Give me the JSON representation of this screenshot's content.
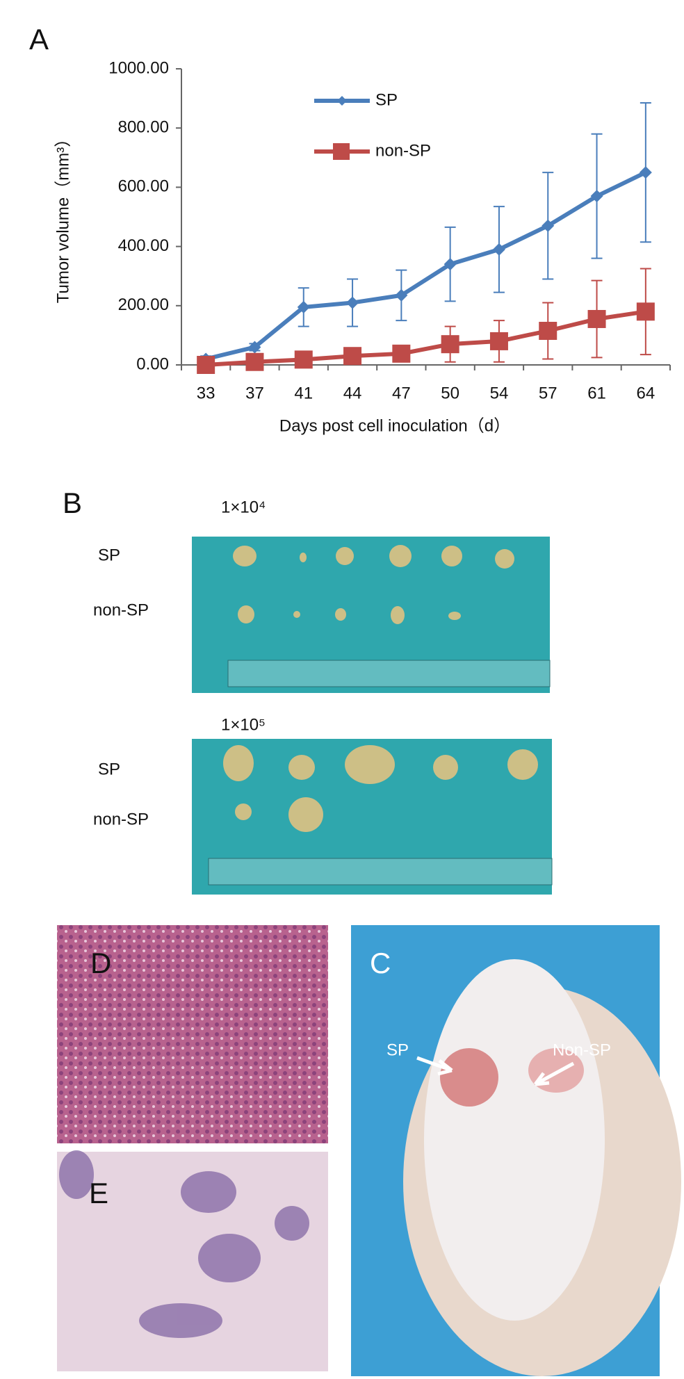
{
  "chart_data": {
    "type": "line",
    "panel_label": "A",
    "x_label": "Days post cell inoculation（d）",
    "y_label": "Tumor volume（mm³）",
    "categories": [
      "33",
      "37",
      "41",
      "44",
      "47",
      "50",
      "54",
      "57",
      "61",
      "64"
    ],
    "series": [
      {
        "name": "SP",
        "color": "#4a7ebb",
        "marker": "diamond",
        "values": [
          20,
          60,
          195,
          210,
          235,
          340,
          390,
          470,
          570,
          650
        ],
        "errors": [
          10,
          12,
          65,
          80,
          85,
          125,
          145,
          180,
          210,
          235
        ]
      },
      {
        "name": "non-SP",
        "color": "#be4b48",
        "marker": "square",
        "values": [
          0,
          10,
          18,
          30,
          38,
          70,
          80,
          115,
          155,
          180
        ],
        "errors": [
          5,
          6,
          8,
          10,
          12,
          60,
          70,
          95,
          130,
          145
        ]
      }
    ],
    "ylim": [
      0,
      1000
    ],
    "yticks": [
      {
        "value": 0,
        "label": "0.00"
      },
      {
        "value": 200,
        "label": "200.00"
      },
      {
        "value": 400,
        "label": "400.00"
      },
      {
        "value": 600,
        "label": "600.00"
      },
      {
        "value": 800,
        "label": "800.00"
      },
      {
        "value": 1000,
        "label": "1000.00"
      }
    ],
    "legend": "top-left"
  },
  "figure": {
    "panel_b": {
      "label": "B",
      "photos": [
        {
          "title": "1×10⁴",
          "rows": [
            "SP",
            "non-SP"
          ]
        },
        {
          "title": "1×10⁵",
          "rows": [
            "SP",
            "non-SP"
          ]
        }
      ]
    },
    "panel_c": {
      "label": "C",
      "arrows": [
        "SP",
        "Non-SP"
      ]
    },
    "panel_d": {
      "label": "D"
    },
    "panel_e": {
      "label": "E"
    }
  }
}
